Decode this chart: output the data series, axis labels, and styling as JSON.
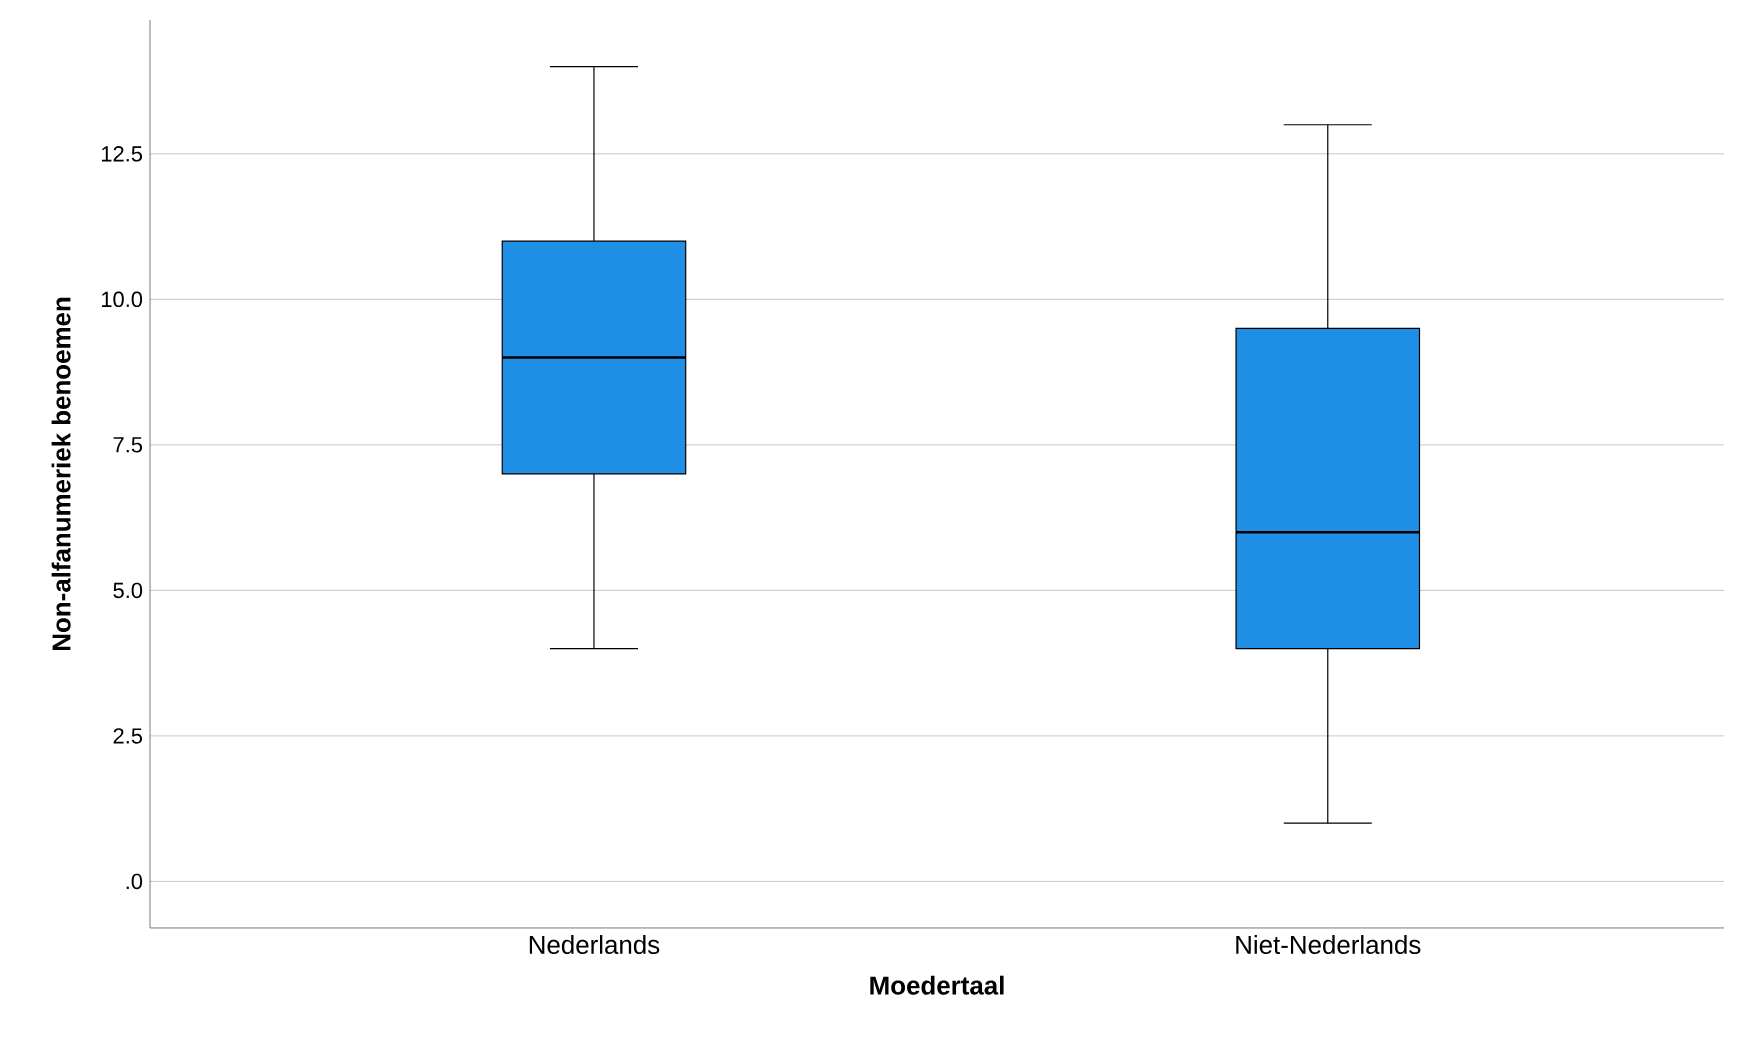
{
  "chart_data": {
    "type": "box",
    "xlabel": "Moedertaal",
    "ylabel": "Non-alfanumeriek benoemen",
    "categories": [
      "Nederlands",
      "Niet-Nederlands"
    ],
    "boxes": [
      {
        "low": 4,
        "q1": 7,
        "median": 9,
        "q3": 11,
        "high": 14
      },
      {
        "low": 1,
        "q1": 4,
        "median": 6,
        "q3": 9.5,
        "high": 13
      }
    ],
    "color": "#1f8fe5",
    "ylim": [
      -0.8,
      14.8
    ],
    "yticks": [
      {
        "value": 0,
        "label": ".0"
      },
      {
        "value": 2.5,
        "label": "2.5"
      },
      {
        "value": 5,
        "label": "5.0"
      },
      {
        "value": 7.5,
        "label": "7.5"
      },
      {
        "value": 10,
        "label": "10.0"
      },
      {
        "value": 12.5,
        "label": "12.5"
      }
    ],
    "grid": "y"
  }
}
